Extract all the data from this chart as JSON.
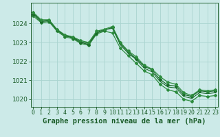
{
  "title": "Graphe pression niveau de la mer (hPa)",
  "bg_color": "#cceae8",
  "grid_color": "#aad4d0",
  "line_color": "#1a6b2a",
  "line_color2": "#2d8c3e",
  "hours": [
    0,
    1,
    2,
    3,
    4,
    5,
    6,
    7,
    8,
    9,
    10,
    11,
    12,
    13,
    14,
    15,
    16,
    17,
    18,
    19,
    20,
    21,
    22,
    23
  ],
  "series1": [
    1024.6,
    1024.2,
    1024.2,
    1023.7,
    1023.4,
    1023.3,
    1023.1,
    1023.0,
    1023.6,
    1023.7,
    1023.85,
    1023.0,
    1022.55,
    1022.25,
    1021.8,
    1021.6,
    1021.2,
    1020.9,
    1020.8,
    1020.35,
    1020.2,
    1020.5,
    1020.45,
    1020.5
  ],
  "series2": [
    1024.5,
    1024.1,
    1024.15,
    1023.65,
    1023.35,
    1023.25,
    1023.0,
    1022.9,
    1023.5,
    1023.65,
    1023.8,
    1022.95,
    1022.5,
    1022.15,
    1021.75,
    1021.55,
    1021.05,
    1020.75,
    1020.7,
    1020.25,
    1020.15,
    1020.45,
    1020.4,
    1020.45
  ],
  "series3": [
    1024.4,
    1024.05,
    1024.1,
    1023.6,
    1023.3,
    1023.2,
    1022.95,
    1022.85,
    1023.45,
    1023.6,
    1023.5,
    1022.7,
    1022.3,
    1021.9,
    1021.5,
    1021.3,
    1020.8,
    1020.5,
    1020.4,
    1020.0,
    1019.9,
    1020.2,
    1020.15,
    1020.2
  ],
  "series4": [
    1024.55,
    1024.15,
    1024.18,
    1023.68,
    1023.38,
    1023.28,
    1023.05,
    1022.95,
    1023.55,
    1023.68,
    1023.75,
    1022.88,
    1022.43,
    1022.1,
    1021.65,
    1021.45,
    1020.95,
    1020.65,
    1020.6,
    1020.15,
    1020.05,
    1020.35,
    1020.3,
    1020.35
  ],
  "ylim_min": 1019.6,
  "ylim_max": 1025.1,
  "yticks": [
    1020,
    1021,
    1022,
    1023,
    1024
  ],
  "title_fontsize": 7.5,
  "title_color": "#1a5c28",
  "tick_color": "#1a5c28",
  "xlabel_fontsize": 6,
  "ylabel_fontsize": 6.5
}
